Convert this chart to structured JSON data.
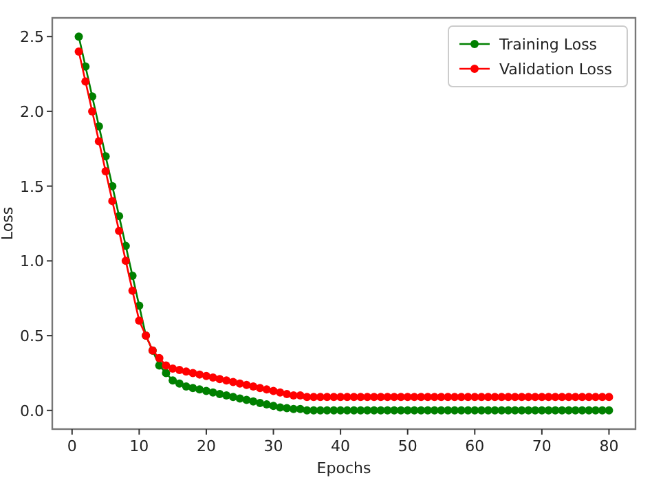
{
  "chart_data": {
    "type": "line",
    "xlabel": "Epochs",
    "ylabel": "Loss",
    "x": [
      1,
      2,
      3,
      4,
      5,
      6,
      7,
      8,
      9,
      10,
      11,
      12,
      13,
      14,
      15,
      16,
      17,
      18,
      19,
      20,
      21,
      22,
      23,
      24,
      25,
      26,
      27,
      28,
      29,
      30,
      31,
      32,
      33,
      34,
      35,
      36,
      37,
      38,
      39,
      40,
      41,
      42,
      43,
      44,
      45,
      46,
      47,
      48,
      49,
      50,
      51,
      52,
      53,
      54,
      55,
      56,
      57,
      58,
      59,
      60,
      61,
      62,
      63,
      64,
      65,
      66,
      67,
      68,
      69,
      70,
      71,
      72,
      73,
      74,
      75,
      76,
      77,
      78,
      79,
      80
    ],
    "series": [
      {
        "name": "Training Loss",
        "color": "#008000",
        "values": [
          2.5,
          2.3,
          2.1,
          1.9,
          1.7,
          1.5,
          1.3,
          1.1,
          0.9,
          0.7,
          0.5,
          0.4,
          0.3,
          0.25,
          0.2,
          0.18,
          0.16,
          0.15,
          0.14,
          0.13,
          0.12,
          0.11,
          0.1,
          0.09,
          0.08,
          0.07,
          0.06,
          0.05,
          0.04,
          0.03,
          0.02,
          0.015,
          0.01,
          0.01,
          0,
          0,
          0,
          0,
          0,
          0,
          0,
          0,
          0,
          0,
          0,
          0,
          0,
          0,
          0,
          0,
          0,
          0,
          0,
          0,
          0,
          0,
          0,
          0,
          0,
          0,
          0,
          0,
          0,
          0,
          0,
          0,
          0,
          0,
          0,
          0,
          0,
          0,
          0,
          0,
          0,
          0,
          0,
          0,
          0,
          0
        ]
      },
      {
        "name": "Validation Loss",
        "color": "#ff0000",
        "values": [
          2.4,
          2.2,
          2.0,
          1.8,
          1.6,
          1.4,
          1.2,
          1.0,
          0.8,
          0.6,
          0.5,
          0.4,
          0.35,
          0.3,
          0.28,
          0.27,
          0.26,
          0.25,
          0.24,
          0.23,
          0.22,
          0.21,
          0.2,
          0.19,
          0.18,
          0.17,
          0.16,
          0.15,
          0.14,
          0.13,
          0.12,
          0.11,
          0.1,
          0.1,
          0.09,
          0.09,
          0.09,
          0.09,
          0.09,
          0.09,
          0.09,
          0.09,
          0.09,
          0.09,
          0.09,
          0.09,
          0.09,
          0.09,
          0.09,
          0.09,
          0.09,
          0.09,
          0.09,
          0.09,
          0.09,
          0.09,
          0.09,
          0.09,
          0.09,
          0.09,
          0.09,
          0.09,
          0.09,
          0.09,
          0.09,
          0.09,
          0.09,
          0.09,
          0.09,
          0.09,
          0.09,
          0.09,
          0.09,
          0.09,
          0.09,
          0.09,
          0.09,
          0.09,
          0.09,
          0.09
        ]
      }
    ],
    "xlim": [
      -2.95,
      83.95
    ],
    "xticks": [
      0,
      10,
      20,
      30,
      40,
      50,
      60,
      70,
      80
    ],
    "ylim": [
      -0.125,
      2.625
    ],
    "yticks": [
      {
        "value": 0,
        "label": "0.0"
      },
      {
        "value": 0.5,
        "label": "0.5"
      },
      {
        "value": 1,
        "label": "1.0"
      },
      {
        "value": 1.5,
        "label": "1.5"
      },
      {
        "value": 2,
        "label": "2.0"
      },
      {
        "value": 2.5,
        "label": "2.5"
      }
    ],
    "legend": "top right",
    "marker": "circle",
    "line_style": "solid",
    "grid": false
  }
}
